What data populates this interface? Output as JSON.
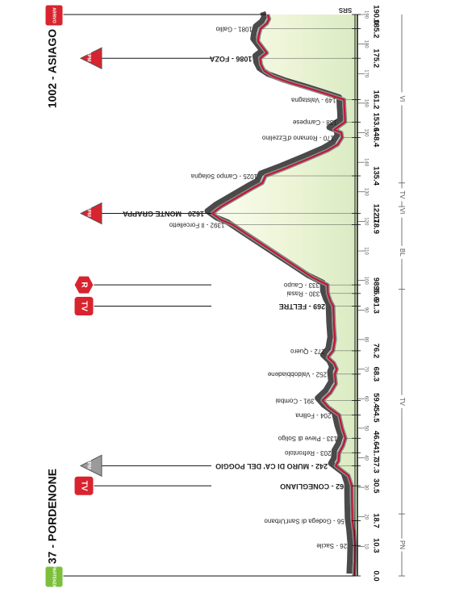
{
  "start": {
    "name": "37 - PORDENONE",
    "badge": "PARTENZA"
  },
  "finish": {
    "name": "1002 - ASIAGO",
    "badge": "ARRIVO"
  },
  "logo": "SRS",
  "distance_ticks": [
    "0.0",
    "10.3",
    "18.7",
    "30.5",
    "37.3",
    "41.7",
    "46.6",
    "54.5",
    "59.4",
    "68.3",
    "76.2",
    "91.3",
    "95.6",
    "98.5",
    "118.9",
    "122.7",
    "135.4",
    "148.4",
    "153.6",
    "161.2",
    "175.2",
    "185.2",
    "190.0"
  ],
  "km_scale": [
    "10",
    "20",
    "30",
    "40",
    "50",
    "60",
    "70",
    "80",
    "90",
    "100",
    "110",
    "120",
    "130",
    "140",
    "150",
    "160",
    "170",
    "180",
    "190"
  ],
  "regions": [
    {
      "code": "PN",
      "from": 0,
      "to": 21
    },
    {
      "code": "TV",
      "from": 21,
      "to": 97
    },
    {
      "code": "BL",
      "from": 97,
      "to": 122
    },
    {
      "code": "VI",
      "from": 122,
      "to": 125
    },
    {
      "code": "TV",
      "from": 125,
      "to": 133
    },
    {
      "code": "VI",
      "from": 133,
      "to": 190
    }
  ],
  "waypoints": [
    {
      "label": "26 - Sacile",
      "km": 10.3
    },
    {
      "label": "56 - Godega di Sant'Urbano",
      "km": 18.7
    },
    {
      "label": "62 - CONEGLIANO",
      "km": 30.5,
      "bold": true
    },
    {
      "label": "242 - MURO DI CA' DEL POGGIO",
      "km": 37.3,
      "bold": true
    },
    {
      "label": "203 - Refrontolo",
      "km": 41.7
    },
    {
      "label": "133 - Pieve di Soligo",
      "km": 46.6
    },
    {
      "label": "204 - Follina",
      "km": 54.5
    },
    {
      "label": "391 - Combai",
      "km": 59.4
    },
    {
      "label": "252 - Valdobbiadene",
      "km": 68.3
    },
    {
      "label": "272 - Quero",
      "km": 76.2
    },
    {
      "label": "269 - FELTRE",
      "km": 91.3,
      "bold": true
    },
    {
      "label": "330 - Rasai",
      "km": 95.6
    },
    {
      "label": "333 - Caupo",
      "km": 98.5
    },
    {
      "label": "1392 - Il Forcelletto",
      "km": 118.9
    },
    {
      "label": "1620 - MONTE GRAPPA",
      "km": 122.7,
      "bold": true
    },
    {
      "label": "1025 - Campo Solagna",
      "km": 135.4
    },
    {
      "label": "170 - Romano d'Ezzelino",
      "km": 148.4
    },
    {
      "label": "138 - Campese",
      "km": 153.6
    },
    {
      "label": "149 - Valstagna",
      "km": 161.2
    },
    {
      "label": "1086 - FOZA",
      "km": 175.2,
      "bold": true
    },
    {
      "label": "1081 - Gallio",
      "km": 185.2
    }
  ],
  "badges": [
    {
      "type": "tv",
      "text": "TV",
      "km": 30.5
    },
    {
      "type": "gpm",
      "text": "GPM 4",
      "km": 37.3
    },
    {
      "type": "tv",
      "text": "TV",
      "km": 91.3
    },
    {
      "type": "r",
      "text": "R",
      "km": 98.5
    },
    {
      "type": "gpm",
      "text": "GPM 1",
      "km": 122.7
    },
    {
      "type": "gpm",
      "text": "GPM 1",
      "km": 175.2
    }
  ],
  "profile": [
    [
      0,
      37
    ],
    [
      5,
      30
    ],
    [
      10.3,
      26
    ],
    [
      15,
      40
    ],
    [
      18.7,
      56
    ],
    [
      25,
      60
    ],
    [
      30.5,
      62
    ],
    [
      34,
      100
    ],
    [
      37.3,
      242
    ],
    [
      39,
      210
    ],
    [
      41.7,
      203
    ],
    [
      44,
      160
    ],
    [
      46.6,
      133
    ],
    [
      50,
      170
    ],
    [
      54.5,
      204
    ],
    [
      57,
      320
    ],
    [
      59.4,
      391
    ],
    [
      62,
      300
    ],
    [
      65,
      240
    ],
    [
      68.3,
      252
    ],
    [
      70,
      230
    ],
    [
      72,
      260
    ],
    [
      74,
      330
    ],
    [
      76.2,
      272
    ],
    [
      80,
      250
    ],
    [
      85,
      262
    ],
    [
      91.3,
      269
    ],
    [
      93,
      300
    ],
    [
      95.6,
      330
    ],
    [
      98.5,
      333
    ],
    [
      101,
      500
    ],
    [
      104,
      650
    ],
    [
      108,
      850
    ],
    [
      112,
      1050
    ],
    [
      116,
      1250
    ],
    [
      118.9,
      1392
    ],
    [
      120.5,
      1520
    ],
    [
      122.7,
      1620
    ],
    [
      125,
      1520
    ],
    [
      128,
      1350
    ],
    [
      131,
      1180
    ],
    [
      133,
      1060
    ],
    [
      135.4,
      1025
    ],
    [
      138,
      800
    ],
    [
      141,
      560
    ],
    [
      144,
      330
    ],
    [
      146,
      220
    ],
    [
      148.4,
      170
    ],
    [
      150,
      180
    ],
    [
      151,
      260
    ],
    [
      153.6,
      138
    ],
    [
      156,
      140
    ],
    [
      158,
      145
    ],
    [
      161.2,
      149
    ],
    [
      163,
      330
    ],
    [
      165,
      540
    ],
    [
      167,
      760
    ],
    [
      169,
      940
    ],
    [
      171,
      1040
    ],
    [
      173,
      1075
    ],
    [
      175.2,
      1086
    ],
    [
      177,
      1010
    ],
    [
      179,
      1060
    ],
    [
      181,
      1110
    ],
    [
      183,
      1100
    ],
    [
      185.2,
      1081
    ],
    [
      187,
      1010
    ],
    [
      188.5,
      985
    ],
    [
      190,
      1002
    ]
  ]
}
